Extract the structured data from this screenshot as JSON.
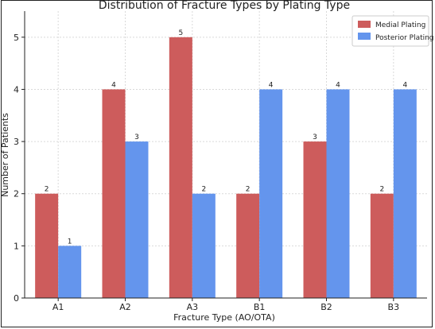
{
  "chart_data": {
    "type": "bar",
    "title": "Distribution of Fracture Types by Plating Type",
    "xlabel": "Fracture Type (AO/OTA)",
    "ylabel": "Number of Patients",
    "categories": [
      "A1",
      "A2",
      "A3",
      "B1",
      "B2",
      "B3"
    ],
    "series": [
      {
        "name": "Medial Plating",
        "values": [
          2,
          4,
          5,
          2,
          3,
          2
        ],
        "color": "#cd5c5c"
      },
      {
        "name": "Posterior Plating",
        "values": [
          1,
          3,
          2,
          4,
          4,
          4
        ],
        "color": "#6495ed"
      }
    ],
    "ylim": [
      0,
      5.5
    ],
    "yticks": [
      0,
      1,
      2,
      3,
      4,
      5
    ],
    "grid": true,
    "legend": "top-right"
  }
}
